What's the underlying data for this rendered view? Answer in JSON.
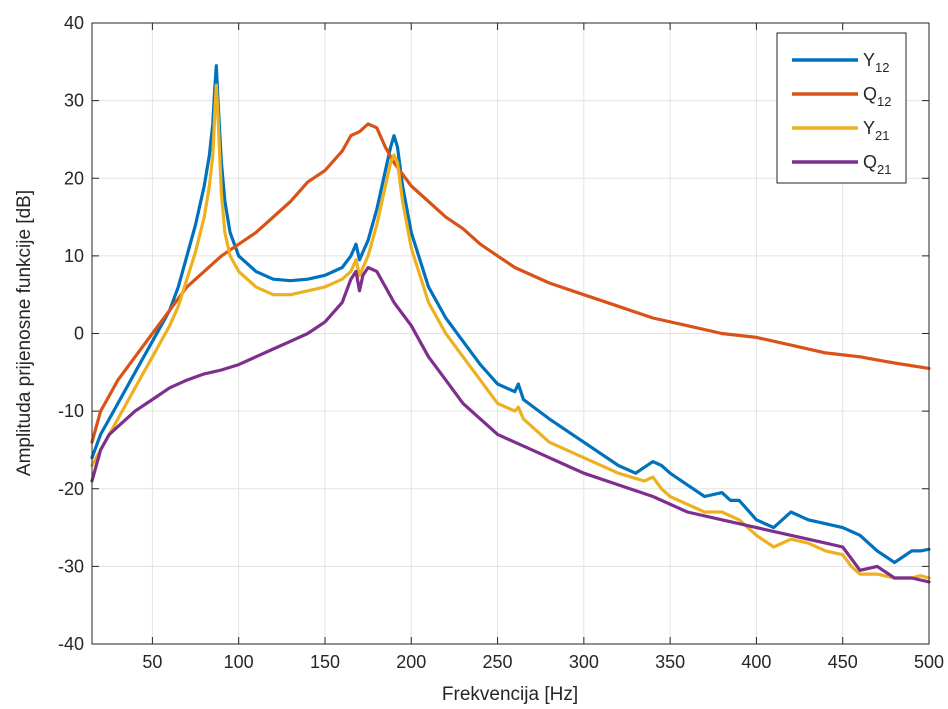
{
  "chart_data": {
    "type": "line",
    "title": "",
    "xlabel": "Frekvencija [Hz]",
    "ylabel": "Amplituda prijenosne funkcije [dB]",
    "xlim": [
      15,
      500
    ],
    "ylim": [
      -40,
      40
    ],
    "xticks": [
      50,
      100,
      150,
      200,
      250,
      300,
      350,
      400,
      450,
      500
    ],
    "yticks": [
      -40,
      -30,
      -20,
      -10,
      0,
      10,
      20,
      30,
      40
    ],
    "grid": true,
    "legend_position": "top-right",
    "series": [
      {
        "name": "Y",
        "subscript": "12",
        "color": "#0072BD",
        "x": [
          15,
          20,
          25,
          30,
          40,
          50,
          60,
          65,
          70,
          75,
          80,
          83,
          85,
          86,
          87,
          88,
          89,
          90,
          92,
          95,
          100,
          110,
          120,
          130,
          140,
          150,
          160,
          165,
          168,
          170,
          175,
          180,
          185,
          188,
          190,
          192,
          195,
          200,
          210,
          220,
          230,
          240,
          250,
          260,
          262,
          265,
          280,
          300,
          320,
          330,
          340,
          345,
          350,
          360,
          370,
          380,
          385,
          390,
          400,
          410,
          420,
          425,
          430,
          440,
          450,
          460,
          470,
          480,
          490,
          495,
          500
        ],
        "y": [
          -16,
          -13,
          -11,
          -9,
          -5,
          -1,
          3,
          6,
          10,
          14,
          19,
          23,
          27,
          31,
          34.5,
          30,
          26,
          22,
          17,
          13,
          10,
          8,
          7,
          6.8,
          7,
          7.5,
          8.5,
          10,
          11.5,
          9.5,
          12,
          16,
          21,
          24,
          25.5,
          24,
          19,
          13,
          6,
          2,
          -1,
          -4,
          -6.5,
          -7.5,
          -6.5,
          -8.5,
          -11,
          -14,
          -17,
          -18,
          -16.5,
          -17,
          -18,
          -19.5,
          -21,
          -20.5,
          -21.5,
          -21.5,
          -24,
          -25,
          -23,
          -23.5,
          -24,
          -24.5,
          -25,
          -26,
          -28,
          -29.5,
          -28,
          -28,
          -27.8
        ]
      },
      {
        "name": "Q",
        "subscript": "12",
        "color": "#D95319",
        "x": [
          15,
          20,
          25,
          30,
          40,
          50,
          60,
          70,
          80,
          90,
          100,
          110,
          120,
          130,
          140,
          150,
          160,
          165,
          170,
          175,
          180,
          185,
          190,
          200,
          210,
          220,
          230,
          240,
          250,
          260,
          280,
          300,
          320,
          340,
          360,
          380,
          400,
          420,
          440,
          460,
          480,
          500
        ],
        "y": [
          -14,
          -10,
          -8,
          -6,
          -3,
          0,
          3,
          6,
          8,
          10,
          11.5,
          13,
          15,
          17,
          19.5,
          21,
          23.5,
          25.5,
          26,
          27,
          26.5,
          24,
          22,
          19,
          17,
          15,
          13.5,
          11.5,
          10,
          8.5,
          6.5,
          5,
          3.5,
          2,
          1,
          0,
          -0.5,
          -1.5,
          -2.5,
          -3,
          -3.8,
          -4.5
        ]
      },
      {
        "name": "Y",
        "subscript": "21",
        "color": "#EDB120",
        "x": [
          15,
          20,
          25,
          30,
          40,
          50,
          60,
          65,
          70,
          75,
          80,
          83,
          85,
          86,
          87,
          88,
          89,
          90,
          92,
          95,
          100,
          110,
          120,
          130,
          140,
          150,
          160,
          165,
          168,
          170,
          175,
          180,
          185,
          188,
          190,
          192,
          195,
          200,
          210,
          220,
          230,
          240,
          250,
          260,
          262,
          265,
          280,
          300,
          320,
          335,
          340,
          345,
          350,
          360,
          370,
          380,
          385,
          390,
          400,
          410,
          420,
          430,
          440,
          450,
          455,
          460,
          470,
          480,
          490,
          495,
          500
        ],
        "y": [
          -17,
          -15,
          -13,
          -11,
          -7,
          -3,
          1,
          3.5,
          7,
          10.5,
          15,
          19,
          23,
          27.5,
          32,
          28,
          23,
          18,
          13,
          10,
          8,
          6,
          5,
          5,
          5.5,
          6,
          7,
          8,
          9.5,
          7.5,
          10,
          14,
          19,
          22,
          23,
          22,
          17,
          11,
          4,
          0,
          -3,
          -6,
          -9,
          -10,
          -9.5,
          -11,
          -14,
          -16,
          -18,
          -19,
          -18.5,
          -20,
          -21,
          -22,
          -23,
          -23,
          -23.5,
          -24,
          -26,
          -27.5,
          -26.5,
          -27,
          -28,
          -28.5,
          -30,
          -31,
          -31,
          -31.5,
          -31.5,
          -31.2,
          -31.5
        ]
      },
      {
        "name": "Q",
        "subscript": "21",
        "color": "#7E2F8E",
        "x": [
          15,
          20,
          25,
          30,
          40,
          50,
          60,
          70,
          80,
          90,
          100,
          110,
          120,
          130,
          140,
          150,
          160,
          165,
          168,
          170,
          172,
          175,
          180,
          185,
          190,
          200,
          210,
          220,
          230,
          240,
          250,
          260,
          270,
          280,
          290,
          300,
          320,
          340,
          360,
          380,
          390,
          400,
          420,
          440,
          450,
          455,
          460,
          470,
          480,
          490,
          500
        ],
        "y": [
          -19,
          -15,
          -13,
          -12,
          -10,
          -8.5,
          -7,
          -6,
          -5.2,
          -4.7,
          -4,
          -3,
          -2,
          -1,
          0,
          1.5,
          4,
          7,
          8,
          5.5,
          7.5,
          8.5,
          8,
          6,
          4,
          1,
          -3,
          -6,
          -9,
          -11,
          -13,
          -14,
          -15,
          -16,
          -17,
          -18,
          -19.5,
          -21,
          -23,
          -24,
          -24.5,
          -25,
          -26,
          -27,
          -27.5,
          -29,
          -30.5,
          -30,
          -31.5,
          -31.5,
          -32
        ]
      }
    ]
  }
}
